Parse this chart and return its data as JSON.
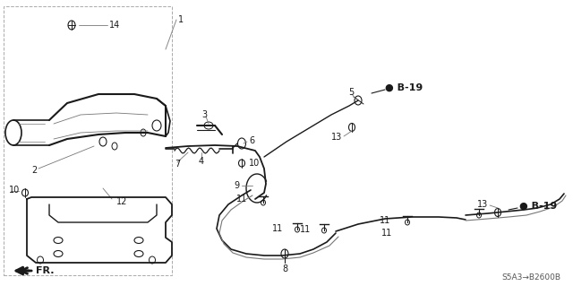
{
  "bg_color": "#ffffff",
  "dark": "#1a1a1a",
  "gray": "#777777",
  "diagram_code": "S5A3→B2600B",
  "figsize": [
    6.4,
    3.19
  ],
  "dpi": 100,
  "xlim": [
    0,
    640
  ],
  "ylim": [
    0,
    319
  ]
}
